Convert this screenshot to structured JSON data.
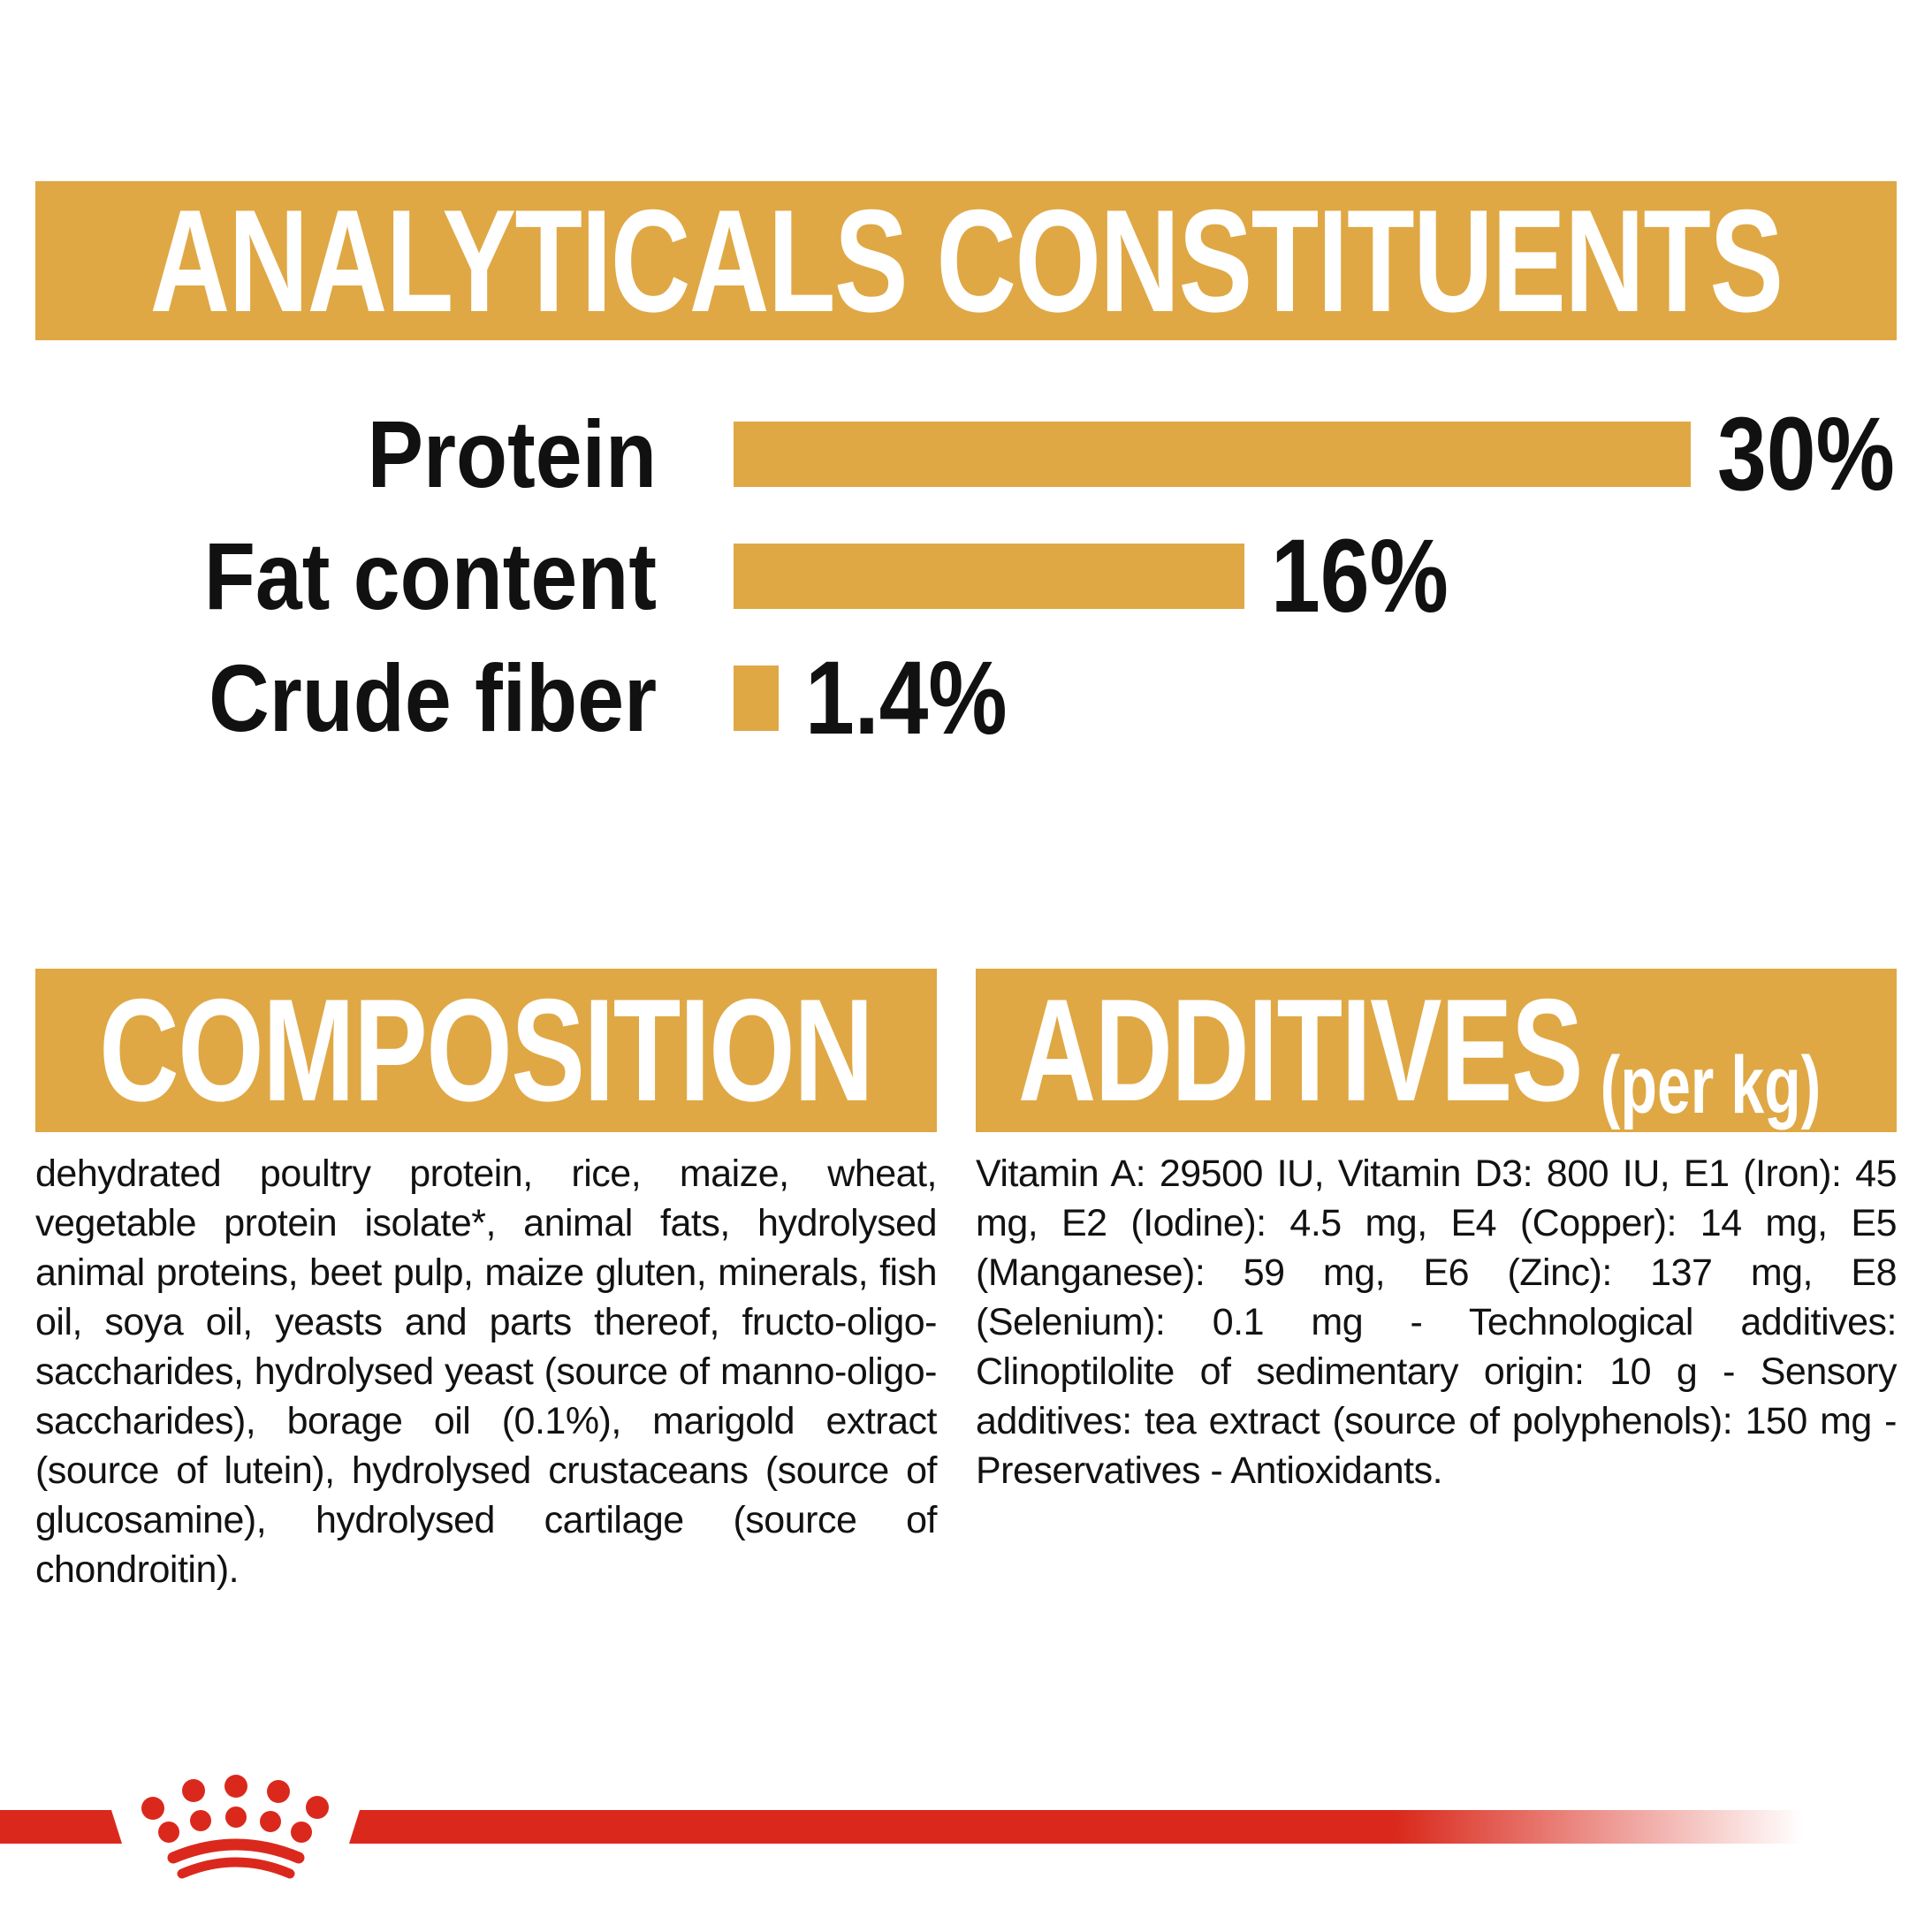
{
  "header": {
    "title": "ANALYTICALS CONSTITUENTS"
  },
  "chart_data": {
    "type": "bar",
    "orientation": "horizontal",
    "title": "ANALYTICALS CONSTITUENTS",
    "categories": [
      "Protein",
      "Fat content",
      "Crude fiber"
    ],
    "values": [
      30,
      16,
      1.4
    ],
    "value_labels": [
      "30%",
      "16%",
      "1.4%"
    ],
    "unit": "%",
    "xlabel": "",
    "ylabel": "",
    "xlim": [
      0,
      30
    ],
    "grid": false,
    "legend": false,
    "bar_color": "#DFA845"
  },
  "composition": {
    "title": "COMPOSITION",
    "body": "dehydrated poultry protein, rice, maize, wheat, vegetable protein isolate*, animal fats, hydrolysed animal proteins, beet pulp, maize gluten, minerals, fish oil, soya oil, yeasts and parts thereof, fructo-oligo-saccharides, hydrolysed yeast (source of manno-oligo-saccharides), borage oil (0.1%), marigold extract (source of lutein), hydrolysed crustaceans (source of glucosamine), hydrolysed cartilage (source of chondroitin)."
  },
  "additives": {
    "title": "ADDITIVES",
    "subtitle": "(per kg)",
    "body": "Vitamin A: 29500 IU, Vitamin D3: 800 IU, E1 (Iron): 45 mg, E2 (Iodine): 4.5 mg, E4 (Copper): 14 mg, E5 (Manganese): 59 mg, E6 (Zinc): 137 mg, E8 (Selenium): 0.1 mg - Technological additives: Clinoptilolite of sedimentary origin: 10 g - Sensory additives: tea extract (source of polyphenols): 150 mg - Preservatives - Antioxidants.",
    "logo": "royal-canin-crown"
  },
  "colors": {
    "gold": "#DFA845",
    "red": "#DA291C",
    "ink": "#111111",
    "white": "#FFFFFF"
  }
}
